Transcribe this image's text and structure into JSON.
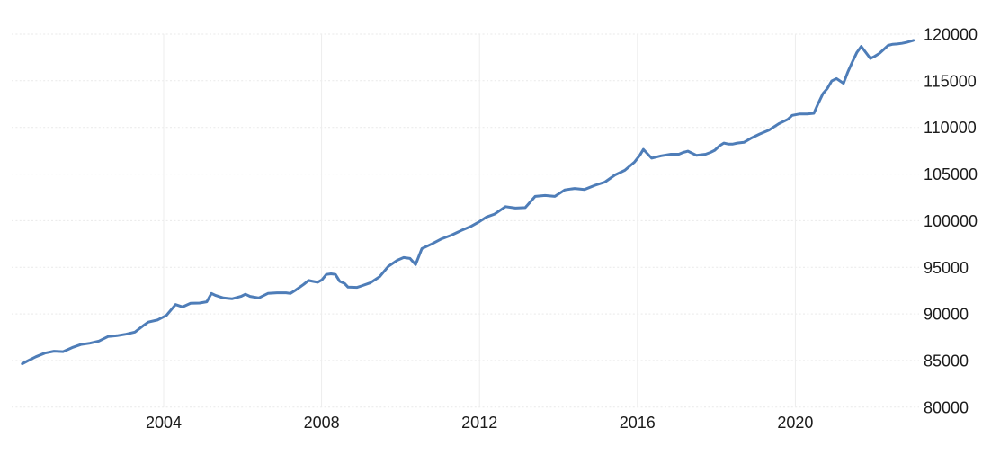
{
  "chart_data": {
    "type": "line",
    "title": "",
    "xlabel": "",
    "ylabel": "",
    "legend": "none",
    "grid": "on",
    "line_color": "#4e7db8",
    "h_gridline_color": "#e9e9e9",
    "v_gridline_color": "#ededed",
    "label_color": "#1b1b1b",
    "background_color": "#ffffff",
    "y_axis_side": "right",
    "x_tick_labels": [
      "2004",
      "2008",
      "2012",
      "2016",
      "2020"
    ],
    "y_tick_labels": [
      "120000",
      "115000",
      "110000",
      "105000",
      "100000",
      "95000",
      "90000",
      "85000",
      "80000"
    ],
    "x_ticks": [
      2004,
      2008,
      2012,
      2016,
      2020
    ],
    "y_ticks": [
      120000,
      115000,
      110000,
      105000,
      100000,
      95000,
      90000,
      85000,
      80000
    ],
    "x_range": [
      2000.2,
      2023.15
    ],
    "y_range": [
      80000,
      120000
    ],
    "series": [
      {
        "name": "value",
        "points": [
          [
            2000.42,
            84650
          ],
          [
            2000.55,
            84950
          ],
          [
            2000.76,
            85400
          ],
          [
            2000.99,
            85800
          ],
          [
            2001.22,
            86000
          ],
          [
            2001.45,
            85950
          ],
          [
            2001.68,
            86380
          ],
          [
            2001.9,
            86710
          ],
          [
            2002.13,
            86860
          ],
          [
            2002.36,
            87090
          ],
          [
            2002.59,
            87570
          ],
          [
            2002.82,
            87670
          ],
          [
            2003.04,
            87820
          ],
          [
            2003.27,
            88050
          ],
          [
            2003.5,
            88790
          ],
          [
            2003.61,
            89120
          ],
          [
            2003.84,
            89340
          ],
          [
            2004.07,
            89850
          ],
          [
            2004.3,
            91000
          ],
          [
            2004.48,
            90750
          ],
          [
            2004.68,
            91140
          ],
          [
            2004.91,
            91170
          ],
          [
            2005.09,
            91300
          ],
          [
            2005.21,
            92200
          ],
          [
            2005.32,
            91980
          ],
          [
            2005.51,
            91720
          ],
          [
            2005.73,
            91620
          ],
          [
            2005.96,
            91880
          ],
          [
            2006.07,
            92110
          ],
          [
            2006.19,
            91880
          ],
          [
            2006.41,
            91720
          ],
          [
            2006.64,
            92200
          ],
          [
            2006.87,
            92270
          ],
          [
            2007.1,
            92270
          ],
          [
            2007.21,
            92200
          ],
          [
            2007.33,
            92520
          ],
          [
            2007.55,
            93170
          ],
          [
            2007.67,
            93590
          ],
          [
            2007.78,
            93490
          ],
          [
            2007.9,
            93390
          ],
          [
            2008.01,
            93650
          ],
          [
            2008.12,
            94230
          ],
          [
            2008.24,
            94300
          ],
          [
            2008.35,
            94230
          ],
          [
            2008.46,
            93490
          ],
          [
            2008.58,
            93270
          ],
          [
            2008.67,
            92870
          ],
          [
            2008.9,
            92840
          ],
          [
            2009.01,
            93000
          ],
          [
            2009.24,
            93350
          ],
          [
            2009.47,
            93980
          ],
          [
            2009.69,
            95100
          ],
          [
            2009.92,
            95760
          ],
          [
            2010.08,
            96050
          ],
          [
            2010.24,
            95950
          ],
          [
            2010.38,
            95280
          ],
          [
            2010.54,
            97000
          ],
          [
            2010.79,
            97500
          ],
          [
            2011.04,
            98050
          ],
          [
            2011.29,
            98450
          ],
          [
            2011.54,
            98950
          ],
          [
            2011.79,
            99400
          ],
          [
            2012.0,
            99900
          ],
          [
            2012.18,
            100400
          ],
          [
            2012.38,
            100700
          ],
          [
            2012.66,
            101500
          ],
          [
            2012.91,
            101350
          ],
          [
            2013.16,
            101400
          ],
          [
            2013.41,
            102600
          ],
          [
            2013.66,
            102700
          ],
          [
            2013.91,
            102600
          ],
          [
            2014.16,
            103300
          ],
          [
            2014.41,
            103450
          ],
          [
            2014.66,
            103350
          ],
          [
            2014.93,
            103800
          ],
          [
            2015.18,
            104150
          ],
          [
            2015.43,
            104900
          ],
          [
            2015.68,
            105400
          ],
          [
            2015.93,
            106300
          ],
          [
            2016.06,
            107000
          ],
          [
            2016.15,
            107650
          ],
          [
            2016.36,
            106700
          ],
          [
            2016.6,
            106950
          ],
          [
            2016.85,
            107130
          ],
          [
            2017.05,
            107130
          ],
          [
            2017.16,
            107320
          ],
          [
            2017.28,
            107450
          ],
          [
            2017.5,
            107000
          ],
          [
            2017.73,
            107130
          ],
          [
            2017.85,
            107320
          ],
          [
            2017.96,
            107550
          ],
          [
            2018.08,
            108030
          ],
          [
            2018.19,
            108320
          ],
          [
            2018.3,
            108220
          ],
          [
            2018.42,
            108220
          ],
          [
            2018.53,
            108320
          ],
          [
            2018.7,
            108400
          ],
          [
            2018.87,
            108820
          ],
          [
            2019.1,
            109300
          ],
          [
            2019.33,
            109700
          ],
          [
            2019.58,
            110400
          ],
          [
            2019.81,
            110870
          ],
          [
            2019.92,
            111290
          ],
          [
            2020.1,
            111440
          ],
          [
            2020.3,
            111440
          ],
          [
            2020.47,
            111510
          ],
          [
            2020.58,
            112570
          ],
          [
            2020.7,
            113630
          ],
          [
            2020.81,
            114180
          ],
          [
            2020.92,
            114980
          ],
          [
            2021.04,
            115240
          ],
          [
            2021.22,
            114730
          ],
          [
            2021.33,
            115950
          ],
          [
            2021.45,
            117080
          ],
          [
            2021.56,
            118050
          ],
          [
            2021.67,
            118690
          ],
          [
            2021.9,
            117400
          ],
          [
            2022.01,
            117620
          ],
          [
            2022.13,
            117940
          ],
          [
            2022.24,
            118360
          ],
          [
            2022.35,
            118790
          ],
          [
            2022.47,
            118920
          ],
          [
            2022.58,
            118950
          ],
          [
            2022.7,
            119020
          ],
          [
            2022.81,
            119110
          ],
          [
            2022.99,
            119330
          ]
        ]
      }
    ]
  }
}
